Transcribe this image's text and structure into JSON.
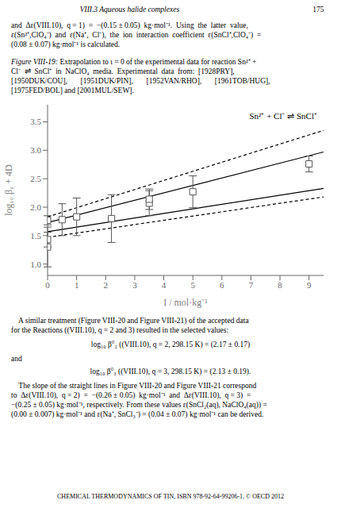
{
  "chart_data": {
    "type": "scatter",
    "x_label": "I / mol·kg⁻¹",
    "y_label": "log₁₀ β₁ + 4D",
    "annotations": [
      "Sn²⁺ + Cl⁻ ⇌ SnCl⁺"
    ],
    "xlim": [
      0,
      9.5
    ],
    "ylim": [
      0.8,
      3.8
    ],
    "xticks": [
      0,
      1,
      2,
      3,
      4,
      5,
      6,
      7,
      8,
      9
    ],
    "yticks": [
      {
        "value": 1.0,
        "label": "1.0"
      },
      1.5,
      {
        "value": 2.0,
        "label": "2.0"
      },
      2.5,
      {
        "value": 3.0,
        "label": "3.0"
      },
      3.5
    ],
    "grid": false,
    "series": [
      {
        "type": "scatter",
        "marker": "square",
        "color": "#555555",
        "x": [
          0.0,
          0.0,
          0.0,
          0.5,
          1.0,
          2.2,
          3.5,
          3.5,
          5.0,
          9.0
        ],
        "values": [
          1.3,
          1.43,
          1.77,
          1.78,
          1.83,
          1.8,
          2.07,
          2.14,
          2.27,
          2.76
        ],
        "yerr_lo": [
          0.35,
          0.13,
          0.08,
          0.28,
          0.33,
          0.42,
          0.22,
          0.18,
          0.28,
          0.14
        ],
        "yerr_hi": [
          0.35,
          0.13,
          0.08,
          0.28,
          0.33,
          0.42,
          0.22,
          0.18,
          0.28,
          0.14
        ]
      },
      {
        "type": "line",
        "line_style": "solid",
        "color": "#000000",
        "x": [
          0.0,
          9.5
        ],
        "values": [
          1.57,
          2.33
        ]
      },
      {
        "type": "line",
        "line_style": "solid",
        "color": "#000000",
        "x": [
          0.0,
          9.5
        ],
        "values": [
          1.73,
          2.97
        ]
      },
      {
        "type": "line",
        "line_style": "dashed",
        "color": "#000000",
        "x": [
          0.0,
          9.5
        ],
        "values": [
          1.47,
          2.18
        ]
      },
      {
        "type": "line",
        "line_style": "dashed",
        "color": "#000000",
        "x": [
          0.0,
          9.5
        ],
        "values": [
          1.83,
          3.35
        ]
      }
    ]
  },
  "page": {
    "header": "VIII.3 Aqueous halide complexes",
    "page_number": "175",
    "top_paragraph": [
      "and  Δε(VIII.10),  q = 1)  =  −(0.15 ± 0.05)  kg·mol⁻¹.  Using  the  latter  value,",
      "ε(Sn²⁺,ClO₄⁻)  and  ε(Na⁺,  Cl⁻),  the  ion  interaction  coefficient  ε(SnCl⁺,ClO₄⁻)  =",
      "(0.08 ± 0.07) kg·mol⁻¹ is calculated."
    ],
    "caption_label": "Figure VIII-19:",
    "caption": [
      " Extrapolation to ι = 0 of the experimental data for reaction Sn²⁺ +",
      "Cl⁻  ⇌  SnCl⁺  in  NaClO₄  media.  Experimental  data  from:  [1928PRY],",
      "[1950DUK/COU],       [1951DUK/PIN],       [1952VAN/RHO],       [1961TOB/HUG],",
      "[1975FED/BOL] and [2001MUL/SEW]."
    ],
    "bottom_paragraph": [
      "    A similar treatment (Figure VIII-20 and Figure VIII-21) of the accepted data",
      "for the Reactions ((VIII.10), q = 2 and 3) resulted in the selected values:"
    ],
    "equations": [
      "log₁₀ β°₂ ((VIII.10), q = 2, 298.15 K) = (2.17 ± 0.17)",
      "log₁₀ β°₃ ((VIII.10), q = 3, 298.15 K) = (2.13 ± 0.19)."
    ],
    "connective": "and",
    "final_paragraph": [
      "    The slope of the straight lines in Figure VIII-20 and Figure VIII-21 correspond",
      "to  Δε(VIII.10),  q = 2)  =  −(0.26 ± 0.05)  kg·mol⁻¹  and  Δε(VIII.10),  q = 3)  =",
      "−(0.25 ± 0.05) kg·mol⁻¹, respectively. From these values ε(SnCl₂(aq), NaClO₄(aq)) =",
      "(0.00 ± 0.007) kg·mol⁻¹ and ε(Na⁺, SnCl₃⁻) = (0.04 ± 0.07) kg·mol⁻¹ can be derived."
    ],
    "footer": "CHEMICAL THERMODYNAMICS OF TIN, ISBN 978-92-64-99206-1, © OECD 2012"
  }
}
